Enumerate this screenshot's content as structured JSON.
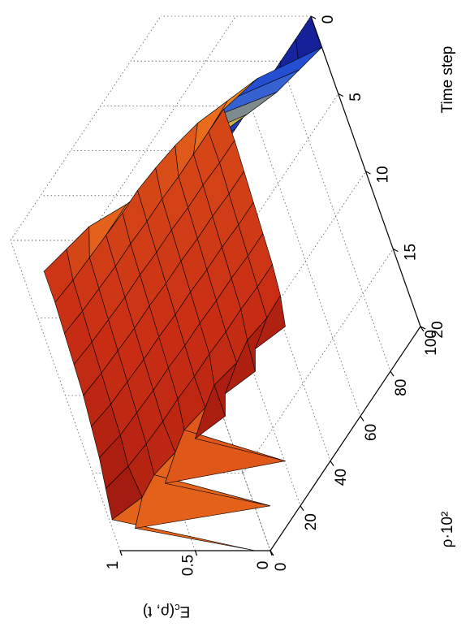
{
  "chart_data": {
    "type": "surface",
    "xlabel": "Time step",
    "ylabel": "ρ·10²",
    "zlabel": [
      "E",
      "c",
      "(ρ, t)"
    ],
    "x": [
      0,
      2,
      4,
      6,
      8,
      10,
      12,
      14,
      16,
      18,
      20
    ],
    "y": [
      0,
      10,
      20,
      30,
      40,
      50,
      60,
      70,
      80,
      90,
      100
    ],
    "z": [
      [
        0,
        0,
        0,
        0,
        0,
        0,
        0,
        0,
        0,
        0,
        0
      ],
      [
        0.85,
        0.8,
        0.75,
        0.6,
        0.5,
        0.4,
        0.3,
        0.2,
        0.1,
        0.05,
        0
      ],
      [
        0.85,
        0.83,
        0.82,
        0.81,
        0.8,
        0.8,
        0.78,
        0.75,
        0.7,
        0.6,
        0.5
      ],
      [
        0.86,
        0.84,
        0.83,
        0.82,
        0.82,
        0.81,
        0.81,
        0.8,
        0.8,
        0.8,
        0.8
      ],
      [
        0.87,
        0.85,
        0.84,
        0.83,
        0.83,
        0.82,
        0.82,
        0.81,
        0.81,
        0.8,
        0.8
      ],
      [
        0.88,
        0.86,
        0.85,
        0.84,
        0.84,
        0.83,
        0.83,
        0.82,
        0.82,
        0.81,
        0.81
      ],
      [
        0.9,
        0.87,
        0.86,
        0.85,
        0.85,
        0.84,
        0.84,
        0.83,
        0.83,
        0.82,
        0.82
      ],
      [
        0.92,
        0.88,
        0.87,
        0.86,
        0.86,
        0.85,
        0.85,
        0.84,
        0.84,
        0.83,
        0.83
      ],
      [
        0.95,
        0.9,
        0.88,
        0.87,
        0.87,
        0.86,
        0.86,
        0.85,
        0.85,
        0.84,
        0.84
      ],
      [
        0.98,
        0.88,
        0.9,
        0.86,
        0.9,
        0.86,
        0.9,
        0.85,
        0.88,
        0.85,
        0.86
      ],
      [
        0.1,
        1.0,
        0.2,
        1.0,
        0.3,
        1.0,
        0.9,
        1.0,
        0.9,
        1.0,
        0.9
      ]
    ],
    "xlim": [
      0,
      20
    ],
    "ylim": [
      0,
      100
    ],
    "zlim": [
      0,
      1
    ],
    "xticks": [
      0,
      5,
      10,
      15,
      20
    ],
    "yticks": [
      0,
      20,
      40,
      60,
      80,
      100
    ],
    "zticks": [
      0,
      0.5,
      1
    ],
    "grid": true
  }
}
